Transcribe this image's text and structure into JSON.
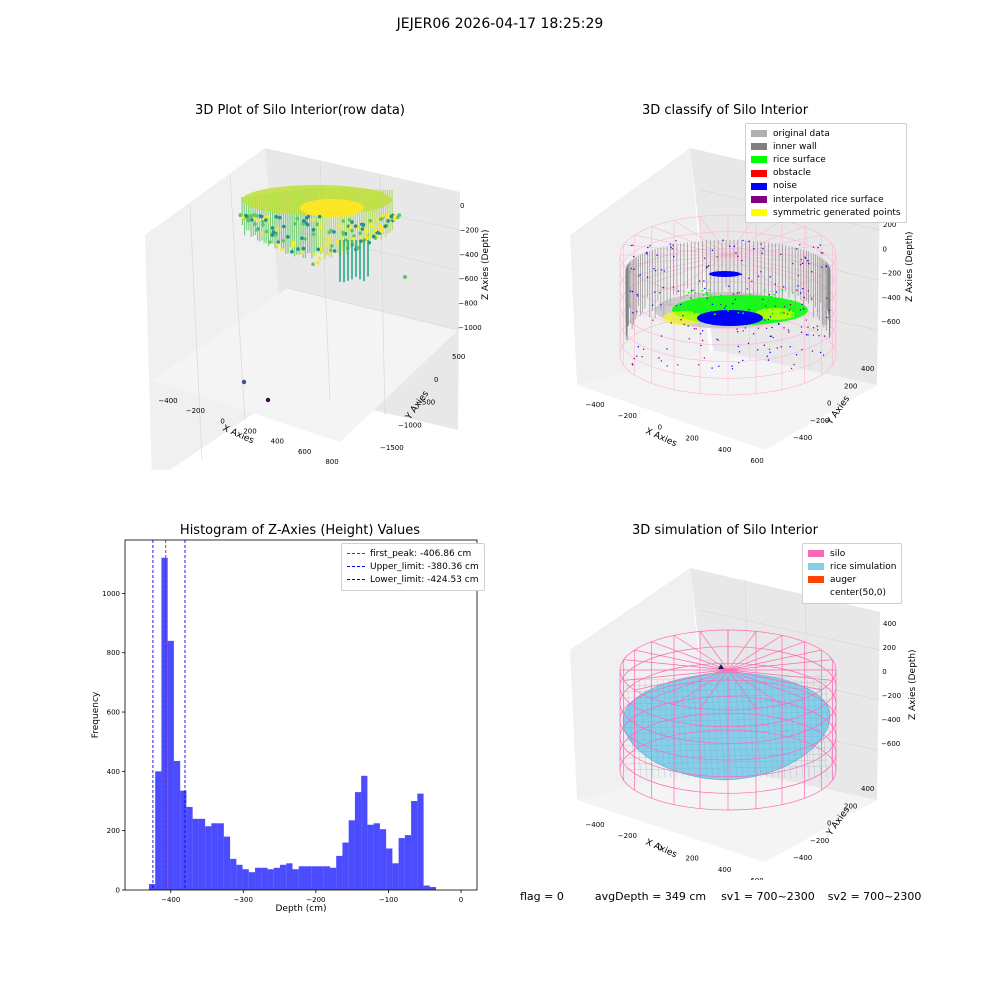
{
  "suptitle": "JEJER06 2026-04-17 18:25:29",
  "chart_data": [
    {
      "id": "raw",
      "type": "scatter",
      "title": "3D Plot of Silo Interior(row data)",
      "xlabel": "X Axies",
      "ylabel": "Y Axies",
      "zlabel": "Z Axies (Depth)",
      "x_ticks": [
        "−400",
        "−200",
        "0",
        "200",
        "400",
        "600",
        "800"
      ],
      "y_ticks": [
        "−1500",
        "−1000",
        "−500",
        "0",
        "500"
      ],
      "z_ticks": [
        "−1000",
        "−800",
        "−600",
        "−400",
        "−200",
        "0"
      ],
      "colormap": [
        "#440154",
        "#3b528b",
        "#21918c",
        "#5ec962",
        "#fde725"
      ]
    },
    {
      "id": "classify",
      "type": "scatter",
      "title": "3D classify of Silo Interior",
      "xlabel": "X Axies",
      "ylabel": "Y Axies",
      "zlabel": "Z Axies (Depth)",
      "x_ticks": [
        "−400",
        "−200",
        "0",
        "200",
        "400",
        "600"
      ],
      "y_ticks": [
        "−400",
        "−200",
        "0",
        "200",
        "400"
      ],
      "z_ticks": [
        "−600",
        "−400",
        "−200",
        "0",
        "200"
      ],
      "legend": [
        {
          "label": "original data",
          "color": "#b0b0b0"
        },
        {
          "label": "inner wall",
          "color": "#808080"
        },
        {
          "label": "rice surface",
          "color": "#00ff00"
        },
        {
          "label": "obstacle",
          "color": "#ff0000"
        },
        {
          "label": "noise",
          "color": "#0000ff"
        },
        {
          "label": "interpolated rice surface",
          "color": "#800080"
        },
        {
          "label": "symmetric generated points",
          "color": "#ffff00"
        }
      ]
    },
    {
      "id": "hist",
      "type": "bar",
      "title": "Histogram of Z-Axies (Height) Values",
      "xlabel": "Depth (cm)",
      "ylabel": "Frequency",
      "xlim": [
        -463,
        22
      ],
      "ylim": [
        0,
        1180
      ],
      "x_ticks": [
        -400,
        -300,
        -200,
        -100,
        0
      ],
      "x_tick_labels": [
        "−400",
        "−300",
        "−200",
        "−100",
        "0"
      ],
      "y_ticks": [
        0,
        200,
        400,
        600,
        800,
        1000
      ],
      "y_tick_labels": [
        "0",
        "200",
        "400",
        "600",
        "800",
        "1000"
      ],
      "bar_color": "#0000ff",
      "bins_start": -430,
      "bin_width": 8.6,
      "values": [
        20,
        400,
        1120,
        840,
        435,
        335,
        280,
        240,
        240,
        215,
        225,
        225,
        180,
        105,
        85,
        70,
        60,
        75,
        75,
        70,
        75,
        85,
        90,
        70,
        80,
        80,
        80,
        80,
        80,
        75,
        115,
        160,
        235,
        330,
        385,
        220,
        225,
        205,
        140,
        90,
        175,
        185,
        300,
        325,
        15,
        10
      ],
      "vlines": [
        {
          "label": "first_peak: -406.86 cm",
          "x": -406.86,
          "color": "#ff0000"
        },
        {
          "label": "Upper_limit: -380.36 cm",
          "x": -380.36,
          "color": "#0000ff"
        },
        {
          "label": "Lower_limit: -424.53 cm",
          "x": -424.53,
          "color": "#0000ff"
        }
      ]
    },
    {
      "id": "sim",
      "type": "scatter",
      "title": "3D simulation of Silo Interior",
      "xlabel": "X Axies",
      "ylabel": "Y Axies",
      "zlabel": "Z Axies (Depth)",
      "x_ticks": [
        "−400",
        "−200",
        "0",
        "200",
        "400",
        "600"
      ],
      "y_ticks": [
        "−400",
        "−200",
        "0",
        "200",
        "400"
      ],
      "z_ticks": [
        "−600",
        "−400",
        "−200",
        "0",
        "200",
        "400"
      ],
      "legend": [
        {
          "label": "silo",
          "color": "#ff69b4"
        },
        {
          "label": "rice simulation",
          "color": "#87ceeb"
        },
        {
          "label": "auger",
          "color": "#ff4500"
        },
        {
          "label": "center(50,0)",
          "color": ""
        }
      ]
    }
  ],
  "footer": {
    "flag": "flag = 0",
    "avg": "avgDepth = 349 cm",
    "sv1": "sv1 = 700~2300",
    "sv2": "sv2 = 700~2300"
  }
}
